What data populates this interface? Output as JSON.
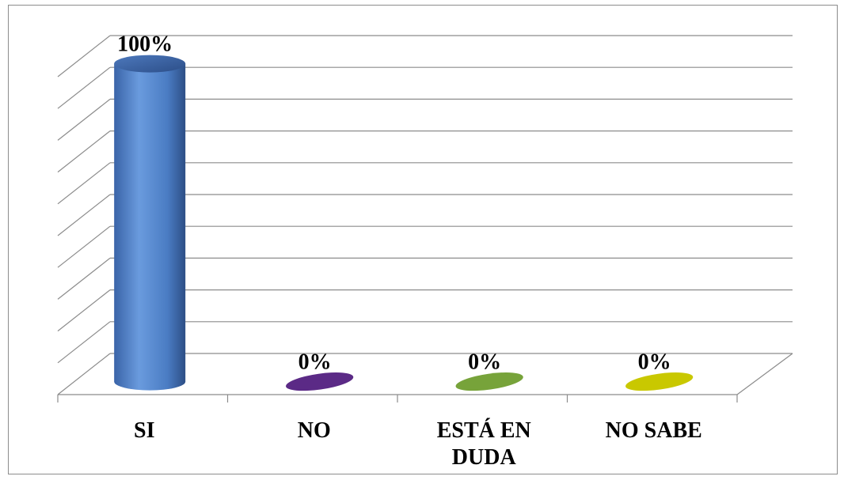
{
  "chart_data": {
    "type": "bar",
    "style": "3d-cylinder",
    "title": "",
    "xlabel": "",
    "ylabel": "",
    "categories": [
      "SI",
      "NO",
      "ESTÁ EN DUDA",
      "NO SABE"
    ],
    "category_lines": [
      [
        "SI"
      ],
      [
        "NO"
      ],
      [
        "ESTÁ EN",
        "DUDA"
      ],
      [
        "NO SABE"
      ]
    ],
    "values": [
      100,
      0,
      0,
      0
    ],
    "data_labels": [
      "100%",
      "0%",
      "0%",
      "0%"
    ],
    "ylim": [
      0,
      100
    ],
    "grid": true,
    "legend": "none",
    "colors": [
      "#4f81bd",
      "#5b2a86",
      "#77a33a",
      "#c9c800"
    ]
  }
}
